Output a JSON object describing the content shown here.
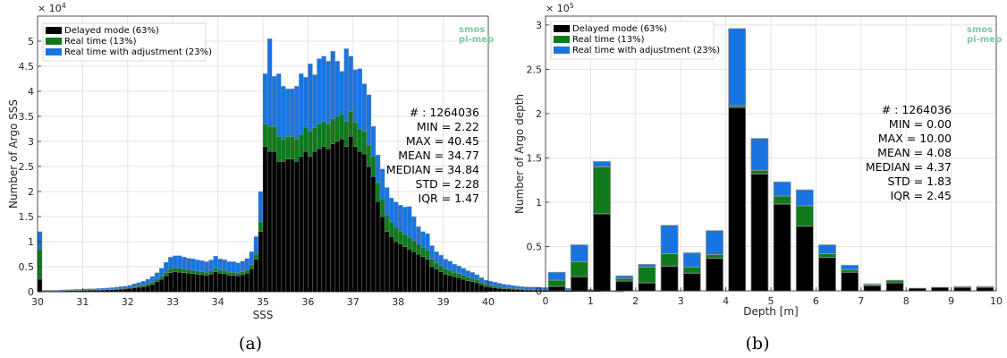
{
  "colors": {
    "delayed": "#000000",
    "realtime": "#0e7a1b",
    "adjusted": "#1874e0",
    "bar_edge": "#9a9a9a",
    "grid": "#e3e3e3",
    "axis": "#262626",
    "logo": "#7fc6a0"
  },
  "logo": {
    "line1": "smos",
    "line2": "pi-mep"
  },
  "chart_data": [
    {
      "type": "bar",
      "stacked": true,
      "caption": "(a)",
      "xlabel": "SSS",
      "ylabel": "Number of Argo SSS",
      "exponent_label": "× 10",
      "exponent_power": "4",
      "xlim": [
        30,
        40
      ],
      "ylim": [
        0,
        55000
      ],
      "xticks": [
        30,
        31,
        32,
        33,
        34,
        35,
        36,
        37,
        38,
        39,
        40
      ],
      "yticks": [
        0,
        5000,
        10000,
        15000,
        20000,
        25000,
        30000,
        35000,
        40000,
        45000,
        50000
      ],
      "ytick_labels": [
        "0",
        "0.5",
        "1",
        "1.5",
        "2",
        "2.5",
        "3",
        "3.5",
        "4",
        "4.5",
        "5"
      ],
      "grid": true,
      "legend_position": "top-left",
      "bin_start": 30,
      "bin_width": 0.1,
      "series": [
        {
          "name": "Delayed mode (63%)",
          "values": [
            2500,
            150,
            150,
            150,
            150,
            180,
            200,
            220,
            250,
            250,
            280,
            300,
            300,
            320,
            350,
            380,
            400,
            450,
            500,
            550,
            650,
            800,
            900,
            1000,
            1200,
            1500,
            2000,
            2500,
            3200,
            3800,
            4000,
            3900,
            3800,
            3700,
            3600,
            3500,
            3400,
            3300,
            3500,
            4000,
            3700,
            3600,
            3300,
            3300,
            3200,
            3400,
            3700,
            4600,
            6500,
            12000,
            29000,
            28000,
            28000,
            26000,
            26000,
            26500,
            26500,
            26000,
            27000,
            28000,
            27000,
            28000,
            28500,
            29000,
            28500,
            29500,
            30000,
            30500,
            29000,
            31000,
            29000,
            28000,
            27500,
            25000,
            23000,
            18000,
            15000,
            12000,
            11000,
            10000,
            9500,
            9000,
            8500,
            8000,
            7500,
            7000,
            6500,
            5000,
            4500,
            4000,
            3500,
            3300,
            3000,
            2800,
            2500,
            2200,
            2000,
            1800,
            1400,
            1000,
            900,
            800,
            700,
            600,
            550,
            500,
            450,
            400,
            350,
            350,
            350,
            320,
            300,
            300,
            280,
            250,
            250,
            230,
            200,
            180,
            200,
            180,
            150,
            130,
            120,
            100,
            80,
            60,
            40,
            20
          ]
        },
        {
          "name": "Real time (13%)",
          "values": [
            6000,
            50,
            50,
            50,
            50,
            50,
            60,
            60,
            60,
            70,
            70,
            80,
            80,
            90,
            100,
            100,
            120,
            130,
            150,
            170,
            200,
            250,
            300,
            350,
            400,
            450,
            500,
            600,
            700,
            800,
            800,
            800,
            750,
            700,
            700,
            650,
            600,
            600,
            650,
            700,
            650,
            600,
            600,
            600,
            550,
            600,
            650,
            800,
            1000,
            2000,
            4500,
            5000,
            5000,
            5000,
            4500,
            4500,
            4500,
            4500,
            4500,
            4800,
            5000,
            4800,
            5000,
            5000,
            5000,
            5000,
            5000,
            5000,
            5000,
            5000,
            4800,
            4500,
            4500,
            4300,
            4000,
            3800,
            3500,
            3300,
            3000,
            2800,
            2600,
            2500,
            2400,
            2200,
            2000,
            1900,
            1800,
            1500,
            1300,
            1200,
            1100,
            1000,
            900,
            850,
            800,
            700,
            650,
            600,
            500,
            450,
            400,
            350,
            300,
            250,
            220,
            200,
            180,
            170,
            160,
            160,
            150,
            150,
            140,
            130,
            120,
            110,
            100,
            90,
            80,
            80,
            80,
            70,
            60,
            50,
            40,
            30,
            25,
            20,
            10,
            5
          ]
        },
        {
          "name": "Real time with adjustment (23%)",
          "values": [
            3500,
            120,
            120,
            120,
            130,
            140,
            150,
            160,
            170,
            180,
            200,
            220,
            220,
            240,
            260,
            280,
            300,
            330,
            360,
            400,
            450,
            550,
            650,
            750,
            900,
            1100,
            1300,
            1600,
            2000,
            2300,
            2400,
            2500,
            2400,
            2300,
            2300,
            2200,
            2200,
            2100,
            2200,
            2400,
            2200,
            2200,
            2100,
            2100,
            2000,
            2100,
            2300,
            2600,
            3500,
            6000,
            10000,
            17500,
            10000,
            12500,
            10500,
            9500,
            9500,
            10500,
            12000,
            10000,
            13500,
            10500,
            13000,
            13000,
            12500,
            13500,
            11000,
            8500,
            14500,
            11000,
            10500,
            12000,
            9500,
            10000,
            6000,
            5500,
            6000,
            5500,
            4700,
            5100,
            5200,
            5400,
            6100,
            4800,
            3500,
            3100,
            3300,
            2700,
            2200,
            2100,
            1900,
            1800,
            1600,
            1500,
            1400,
            1300,
            1200,
            1000,
            900,
            850,
            800,
            750,
            700,
            650,
            600,
            550,
            500,
            480,
            460,
            440,
            420,
            420,
            400,
            380,
            360,
            350,
            350,
            360,
            380,
            800,
            500,
            400,
            300,
            250,
            200,
            150,
            120,
            80,
            40,
            20,
            10
          ]
        }
      ],
      "stats": [
        "# : 1264036",
        "MIN = 2.22",
        "MAX =  40.45",
        "MEAN = 34.77",
        "MEDIAN = 34.84",
        "STD = 2.28",
        "IQR = 1.47"
      ]
    },
    {
      "type": "bar",
      "stacked": true,
      "caption": "(b)",
      "xlabel": "Depth [m]",
      "ylabel": "Number of Argo depth",
      "exponent_label": "× 10",
      "exponent_power": "5",
      "xlim": [
        0,
        10
      ],
      "ylim": [
        0,
        310000
      ],
      "xticks": [
        0,
        1,
        2,
        3,
        4,
        5,
        6,
        7,
        8,
        9,
        10
      ],
      "yticks": [
        0,
        50000,
        100000,
        150000,
        200000,
        250000,
        300000
      ],
      "ytick_labels": [
        "0",
        "0.5",
        "1",
        "1.5",
        "2",
        "2.5",
        "3"
      ],
      "grid": true,
      "legend_position": "top-left",
      "x": [
        0.25,
        0.75,
        1.25,
        1.75,
        2.25,
        2.75,
        3.25,
        3.75,
        4.25,
        4.75,
        5.25,
        5.75,
        6.25,
        6.75,
        7.25,
        7.75,
        8.25,
        8.75,
        9.25,
        9.75
      ],
      "bar_width": 0.38,
      "series": [
        {
          "name": "Delayed mode (63%)",
          "values": [
            5000,
            16000,
            87000,
            11000,
            9000,
            28000,
            20000,
            37000,
            207000,
            132000,
            98000,
            73000,
            38000,
            21000,
            6000,
            9000,
            3000,
            4000,
            4000,
            4000
          ]
        },
        {
          "name": "Real time (13%)",
          "values": [
            7000,
            17000,
            53000,
            3000,
            18000,
            14000,
            7000,
            4000,
            2000,
            4000,
            9000,
            23000,
            4000,
            3000,
            1000,
            3000,
            0,
            0,
            0,
            0
          ]
        },
        {
          "name": "Real time with adjustment (23%)",
          "values": [
            9000,
            19000,
            6000,
            3000,
            3000,
            32000,
            16000,
            27000,
            87000,
            36000,
            16000,
            18000,
            10000,
            5000,
            1000,
            0,
            0,
            0,
            1000,
            1000
          ]
        }
      ],
      "stats": [
        "# : 1264036",
        "MIN = 0.00",
        "MAX =  10.00",
        "MEAN = 4.08",
        "MEDIAN = 4.37",
        "STD = 1.83",
        "IQR = 2.45"
      ]
    }
  ]
}
